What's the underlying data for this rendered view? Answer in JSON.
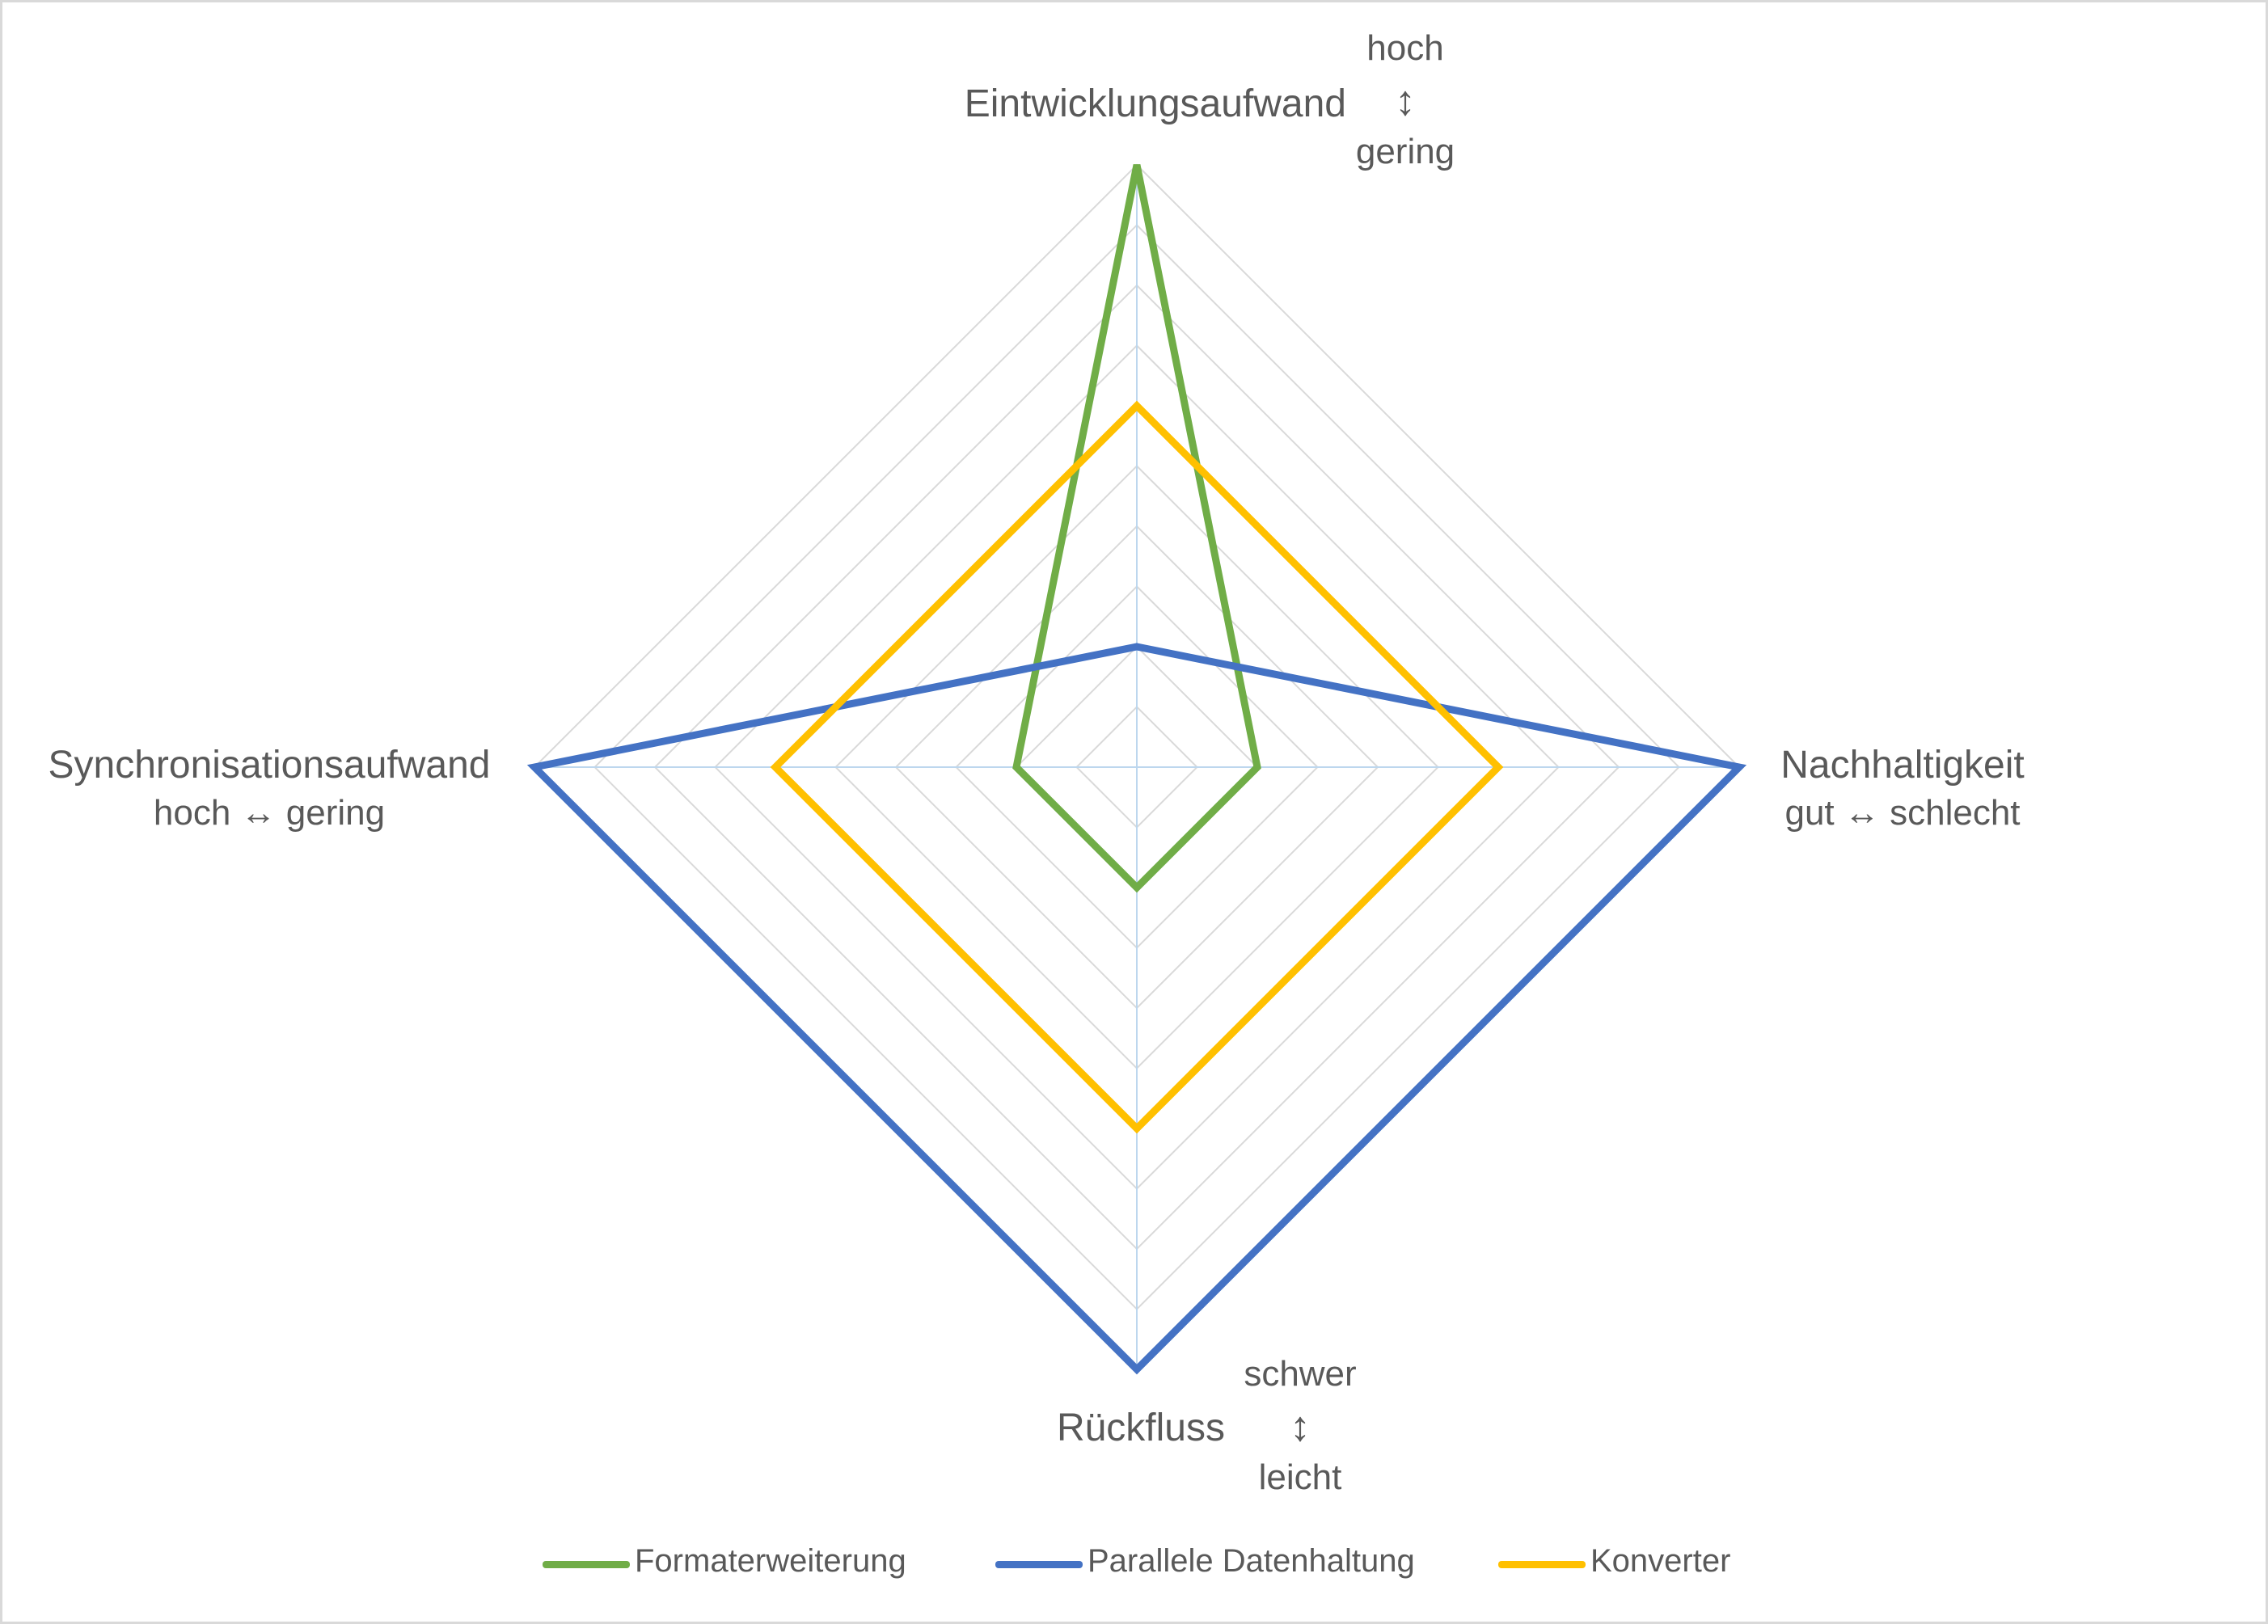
{
  "chart_data": {
    "type": "radar",
    "axes": [
      {
        "label": "Eintwicklungsaufwand",
        "scale_top": "hoch",
        "scale_arrow": "↕",
        "scale_bottom": "gering"
      },
      {
        "label": "Nachhaltigkeit",
        "scale_text": "gut ↔ schlecht"
      },
      {
        "label": "Rückfluss",
        "scale_top": "schwer",
        "scale_arrow": "↕",
        "scale_bottom": "leicht"
      },
      {
        "label": "Synchronisationsaufwand",
        "scale_text": "hoch ↔ gering"
      }
    ],
    "range": [
      0,
      10
    ],
    "gridlines": 10,
    "series": [
      {
        "name": "Formaterweiterung",
        "color": "#70ad47",
        "values": [
          10,
          2,
          2,
          2
        ]
      },
      {
        "name": "Parallele Datenhaltung",
        "color": "#4472c4",
        "values": [
          2,
          10,
          10,
          10
        ]
      },
      {
        "name": "Konverter",
        "color": "#ffc000",
        "values": [
          6,
          6,
          6,
          6
        ]
      }
    ],
    "grid_color": "#d9d9d9",
    "spoke_color": "#bdd7ee",
    "legend_position": "bottom"
  }
}
